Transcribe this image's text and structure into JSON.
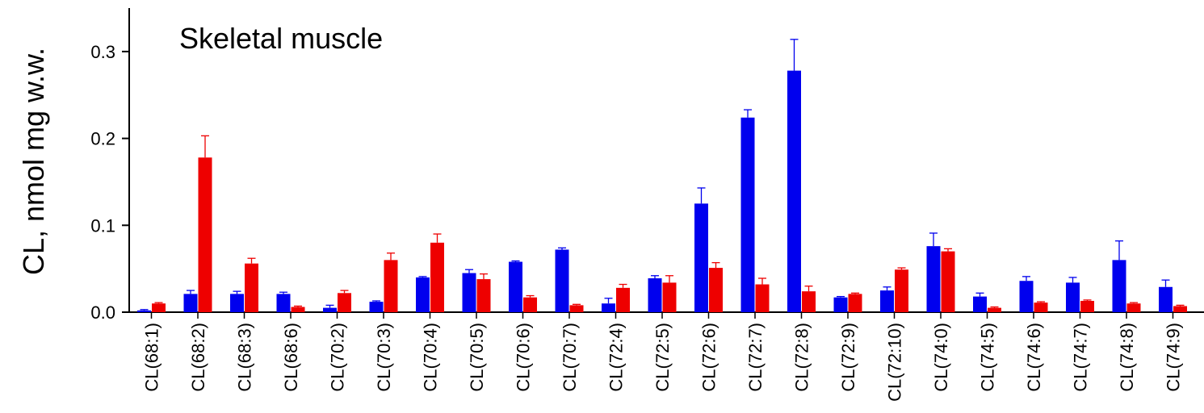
{
  "chart_data": {
    "type": "bar",
    "title": "Skeletal muscle",
    "xlabel": "",
    "ylabel": "CL, nmol mg w.w.",
    "ylim": [
      0,
      0.35
    ],
    "yticks": [
      "0.0",
      "0.1",
      "0.2",
      "0.3"
    ],
    "grid": false,
    "legend": "none",
    "categories": [
      "CL(68:1)",
      "CL(68:2)",
      "CL(68:3)",
      "CL(68:6)",
      "CL(70:2)",
      "CL(70:3)",
      "CL(70:4)",
      "CL(70:5)",
      "CL(70:6)",
      "CL(70:7)",
      "CL(72:4)",
      "CL(72:5)",
      "CL(72:6)",
      "CL(72:7)",
      "CL(72:8)",
      "CL(72:9)",
      "CL(72:10)",
      "CL(74:0)",
      "CL(74:5)",
      "CL(74:6)",
      "CL(74:7)",
      "CL(74:8)",
      "CL(74:9)"
    ],
    "series": [
      {
        "color": "#0000ee",
        "values": [
          0.002,
          0.021,
          0.021,
          0.021,
          0.005,
          0.012,
          0.04,
          0.045,
          0.058,
          0.072,
          0.01,
          0.039,
          0.125,
          0.224,
          0.278,
          0.017,
          0.025,
          0.076,
          0.018,
          0.036,
          0.034,
          0.06,
          0.029
        ],
        "errors": [
          0.001,
          0.004,
          0.003,
          0.002,
          0.003,
          0.001,
          0.001,
          0.004,
          0.001,
          0.002,
          0.006,
          0.003,
          0.018,
          0.009,
          0.036,
          0.001,
          0.004,
          0.015,
          0.004,
          0.005,
          0.006,
          0.022,
          0.008
        ]
      },
      {
        "color": "#ee0000",
        "values": [
          0.01,
          0.178,
          0.056,
          0.006,
          0.022,
          0.06,
          0.08,
          0.038,
          0.017,
          0.008,
          0.028,
          0.034,
          0.051,
          0.032,
          0.024,
          0.021,
          0.049,
          0.07,
          0.005,
          0.011,
          0.013,
          0.01,
          0.007
        ],
        "errors": [
          0.001,
          0.025,
          0.006,
          0.001,
          0.003,
          0.008,
          0.01,
          0.006,
          0.002,
          0.001,
          0.004,
          0.008,
          0.006,
          0.007,
          0.006,
          0.001,
          0.002,
          0.003,
          0.001,
          0.001,
          0.001,
          0.001,
          0.001
        ]
      }
    ]
  }
}
